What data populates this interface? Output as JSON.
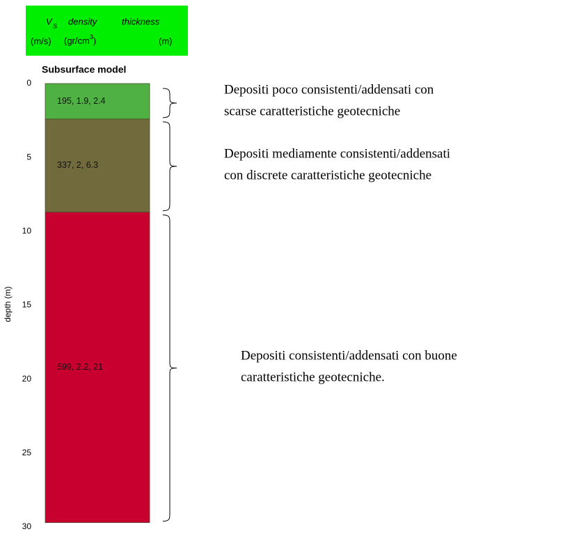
{
  "chart_data": {
    "type": "layers",
    "header": {
      "vs_symbol": "V",
      "vs_subscript": "S",
      "density": "density",
      "thickness": "thickness",
      "vs_unit": "(m/s)",
      "density_unit_start": "(gr/cm",
      "density_unit_exp": "3",
      "density_unit_end": ")",
      "thickness_unit": "(m)",
      "color": "#00ee00"
    },
    "title": "Subsurface model",
    "ylabel": "depth (m)",
    "ylim": [
      0,
      30
    ],
    "yticks": [
      0,
      5,
      10,
      15,
      20,
      25,
      30
    ],
    "layers": [
      {
        "label": "195, 1.9, 2.4",
        "vs": 195,
        "density": 1.9,
        "thickness": 2.4,
        "color": "#4fb043",
        "annotation": [
          "Depositi poco consistenti/addensati con",
          "scarse caratteristiche geotecniche"
        ]
      },
      {
        "label": "337, 2, 6.3",
        "vs": 337,
        "density": 2,
        "thickness": 6.3,
        "color": "#716a3d",
        "annotation": [
          "Depositi mediamente consistenti/addensati",
          "con discrete caratteristiche geotecniche"
        ]
      },
      {
        "label": "599, 2.2, 21",
        "vs": 599,
        "density": 2.2,
        "thickness": 21,
        "color": "#c8002f",
        "annotation": [
          "Depositi consistenti/addensati con buone",
          "caratteristiche geotecniche."
        ]
      }
    ]
  }
}
